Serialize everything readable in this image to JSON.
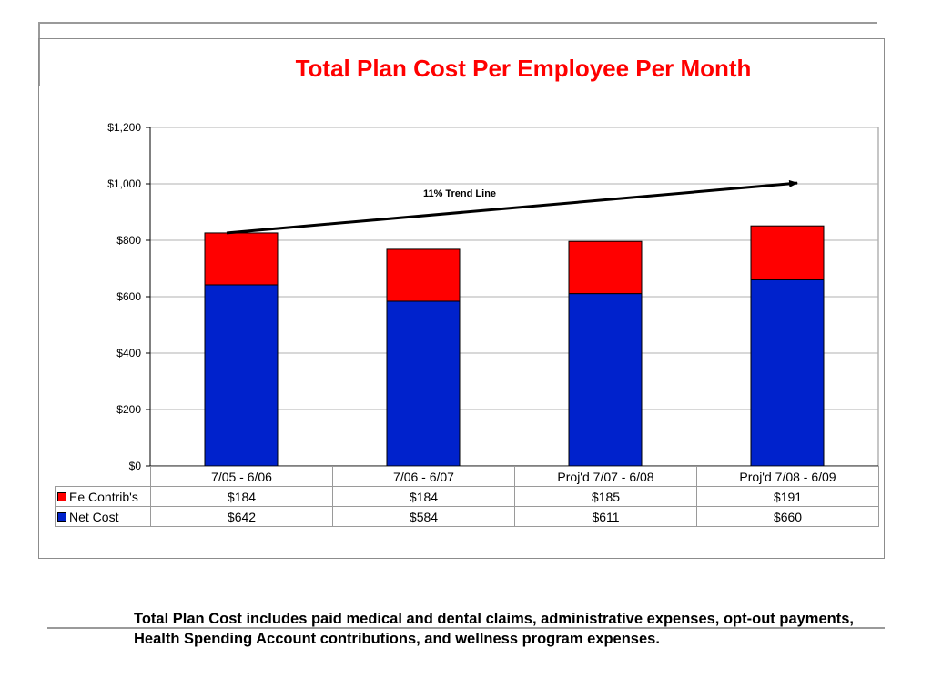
{
  "colors": {
    "title": "#ff0000",
    "ee_contrib": "#ff0000",
    "net_cost": "#0022cc",
    "grid": "#b0b0b0"
  },
  "chart_data": {
    "type": "bar",
    "stacked": true,
    "title": "Total Plan Cost Per Employee Per Month",
    "categories": [
      "7/05 - 6/06",
      "7/06 - 6/07",
      "Proj'd  7/07 - 6/08",
      "Proj'd 7/08 - 6/09"
    ],
    "series": [
      {
        "name": "Net Cost",
        "values": [
          642,
          584,
          611,
          660
        ],
        "labels": [
          "$642",
          "$584",
          "$611",
          "$660"
        ]
      },
      {
        "name": "Ee Contrib's",
        "values": [
          184,
          184,
          185,
          191
        ],
        "labels": [
          "$184",
          "$184",
          "$185",
          "$191"
        ]
      }
    ],
    "ylim": [
      0,
      1200
    ],
    "yticks": [
      0,
      200,
      400,
      600,
      800,
      1000,
      1200
    ],
    "ytick_labels": [
      "$0",
      "$200",
      "$400",
      "$600",
      "$800",
      "$1,000",
      "$1,200"
    ],
    "grid": true,
    "legend": "data-table",
    "annotation": {
      "text": "11% Trend Line",
      "from": {
        "category_index": 0,
        "y": 826
      },
      "to": {
        "category_index": 3.15,
        "y": 1003
      }
    }
  },
  "footnote": "Total Plan Cost includes paid medical and dental claims, administrative expenses, opt-out payments, Health Spending Account contributions, and wellness program  expenses."
}
